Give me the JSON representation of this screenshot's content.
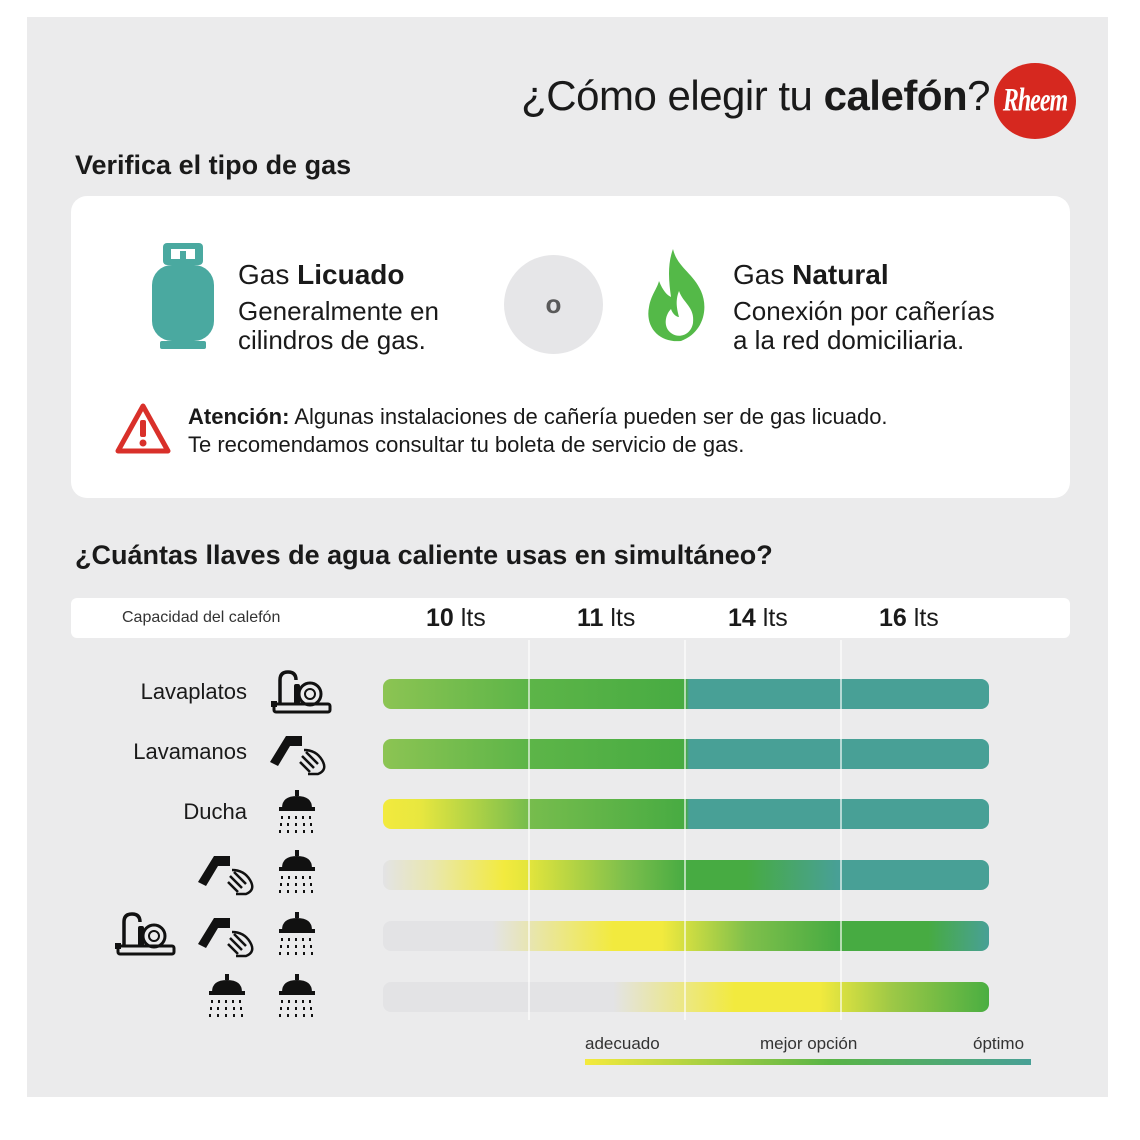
{
  "header": {
    "title_pre": "¿Cómo elegir tu ",
    "title_bold": "calefón",
    "title_post": "?",
    "logo_text": "Rheem"
  },
  "section_gas": {
    "heading": "Verifica el tipo de gas",
    "licuado": {
      "prefix": "Gas ",
      "bold": "Licuado",
      "line1": "Generalmente en",
      "line2": "cilindros de gas.",
      "icon": "gas-cylinder-icon"
    },
    "separator": "o",
    "natural": {
      "prefix": "Gas ",
      "bold": "Natural",
      "line1": "Conexión por cañerías",
      "line2": "a la red domiciliaria.",
      "icon": "flame-icon"
    },
    "warning": {
      "bold": "Atención:",
      "line1": " Algunas instalaciones de cañería pueden ser de gas licuado.",
      "line2": "Te recomendamos consultar tu boleta de servicio de gas.",
      "icon": "warning-icon"
    }
  },
  "section_llaves": {
    "heading": "¿Cuántas llaves de agua caliente usas en simultáneo?",
    "capacity_label": "Capacidad del calefón",
    "capacities": [
      {
        "num": "10",
        "unit": " lts"
      },
      {
        "num": "11",
        "unit": " lts"
      },
      {
        "num": "14",
        "unit": " lts"
      },
      {
        "num": "16",
        "unit": " lts"
      }
    ],
    "rows": [
      {
        "label": "Lavaplatos",
        "icons": [
          "dishwasher-sink-icon"
        ]
      },
      {
        "label": "Lavamanos",
        "icons": [
          "hand-faucet-icon"
        ]
      },
      {
        "label": "Ducha",
        "icons": [
          "shower-icon"
        ]
      },
      {
        "label": "",
        "icons": [
          "hand-faucet-icon",
          "shower-icon"
        ]
      },
      {
        "label": "",
        "icons": [
          "dishwasher-sink-icon",
          "hand-faucet-icon",
          "shower-icon"
        ]
      },
      {
        "label": "",
        "icons": [
          "shower-icon",
          "shower-icon"
        ]
      }
    ]
  },
  "legend": {
    "adecuado": "adecuado",
    "mejor": "mejor opción",
    "optimo": "óptimo"
  },
  "colors": {
    "adecuado": "#f4ea3d",
    "mejor_opcion": "#47a93f",
    "optimo": "#48a096",
    "brand_red": "#d6281f",
    "cylinder_teal": "#4aa9a0",
    "warning_red": "#d9302a"
  }
}
